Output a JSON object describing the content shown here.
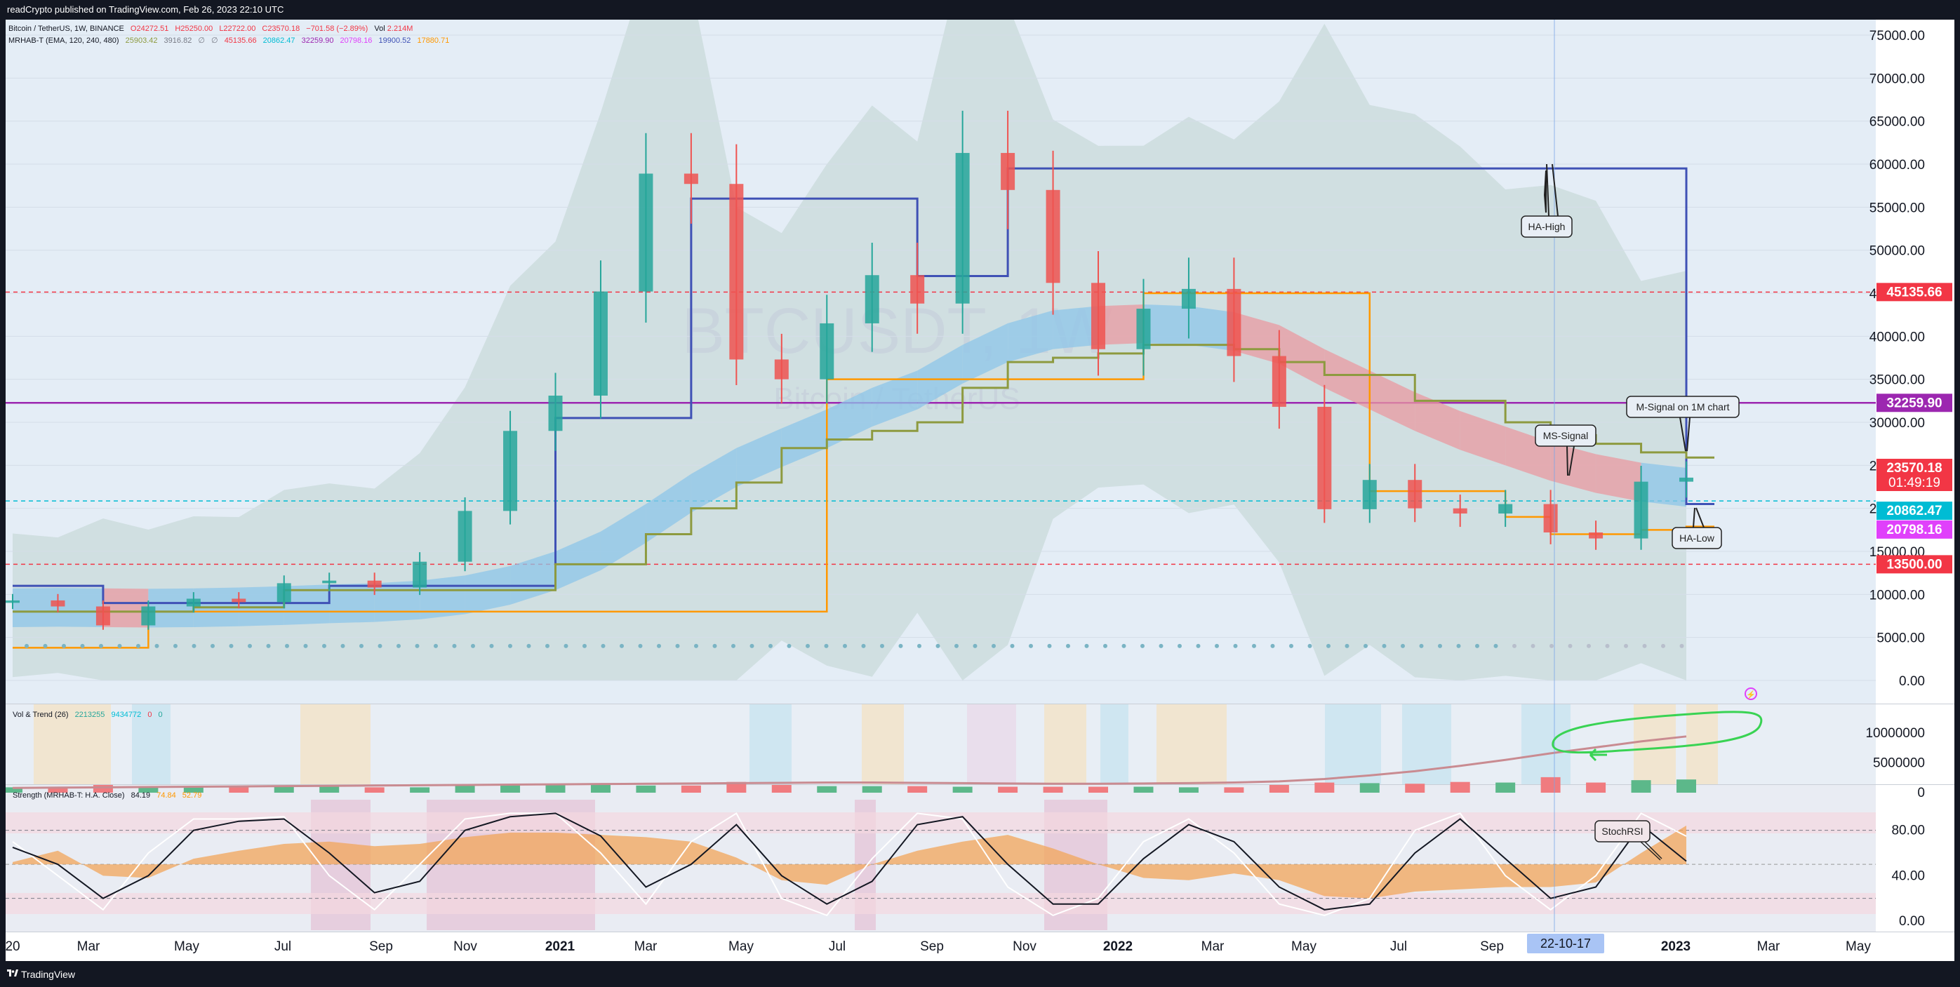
{
  "header": {
    "published": "readCrypto published on TradingView.com, Feb 26, 2023 22:10 UTC"
  },
  "footer": {
    "brand": "TradingView",
    "logo_icon": "tradingview-logo-icon"
  },
  "legend": {
    "symbol": {
      "name": "Bitcoin / TetherUS, 1W, BINANCE",
      "o": "O24272.51",
      "h": "H25250.00",
      "l": "L22722.00",
      "c": "C23570.18",
      "chg": "−701.58 (−2.89%)",
      "vol_label": "Vol",
      "vol": "2.214M"
    },
    "mrhab": {
      "name": "MRHAB-T (EMA, 120, 240, 480)",
      "v1": "25903.42",
      "v2": "3916.82",
      "v3": "∅",
      "v4": "∅",
      "v5": "45135.66",
      "v6": "20862.47",
      "v7": "32259.90",
      "v8": "20798.16",
      "v9": "19900.52",
      "v10": "17880.71"
    },
    "voltrend": {
      "name": "Vol & Trend (26)",
      "v1": "2213255",
      "v2": "9434772",
      "v3": "0",
      "v4": "0"
    },
    "strength": {
      "name": "Strength (MRHAB-T: H.A. Close)",
      "v1": "84.19",
      "v2": "74.84",
      "v3": "52.79"
    }
  },
  "watermark": {
    "symbol": "BTCUSDT, 1W",
    "description": "Bitcoin / TetherUS"
  },
  "annotations": {
    "ha_high": "HA-High",
    "m_signal": "M-Signal on 1M chart",
    "ms_signal": "MS-Signal",
    "ha_low": "HA-Low",
    "stochrsi": "StochRSI"
  },
  "price_badges": [
    {
      "label": "45135.66",
      "color": "#f23645"
    },
    {
      "label": "32259.90",
      "color": "#9c27b0"
    },
    {
      "label": "23570.18",
      "sub": "01:49:19",
      "color": "#f23645"
    },
    {
      "label": "20862.47",
      "color": "#00bcd4"
    },
    {
      "label": "20798.16",
      "color": "#e040fb"
    },
    {
      "label": "13500.00",
      "color": "#f23645"
    }
  ],
  "crosshair_date": "22-10-17",
  "colors": {
    "up": "#26a69a",
    "down": "#ef5350",
    "ha_line": "#3f51b5",
    "m_signal": "#9c27b0",
    "ms_signal": "#ff9800",
    "olive": "#8d9a3f",
    "highlight": "#4caf50"
  },
  "chart_data": [
    {
      "type": "candlestick",
      "title": "Bitcoin / TetherUS, 1W, BINANCE",
      "x_ticks": [
        "20",
        "Mar",
        "May",
        "Jul",
        "Sep",
        "Nov",
        "2021",
        "Mar",
        "May",
        "Jul",
        "Sep",
        "Nov",
        "2022",
        "Mar",
        "May",
        "Jul",
        "Sep",
        "Nov",
        "2023",
        "Mar",
        "May"
      ],
      "y_ticks": [
        "75000.00",
        "70000.00",
        "65000.00",
        "60000.00",
        "55000.00",
        "50000.00",
        "45000.00",
        "40000.00",
        "35000.00",
        "30000.00",
        "25000.00",
        "20000.00",
        "15000.00",
        "10000.00",
        "5000.00",
        "0.00"
      ],
      "ylim": [
        0,
        75000
      ],
      "x": [
        "2020-01",
        "2020-02",
        "2020-03",
        "2020-04",
        "2020-05",
        "2020-06",
        "2020-07",
        "2020-08",
        "2020-09",
        "2020-10",
        "2020-11",
        "2020-12",
        "2021-01",
        "2021-02",
        "2021-03",
        "2021-04",
        "2021-05",
        "2021-06",
        "2021-07",
        "2021-08",
        "2021-09",
        "2021-10",
        "2021-11",
        "2021-12",
        "2022-01",
        "2022-02",
        "2022-03",
        "2022-04",
        "2022-05",
        "2022-06",
        "2022-07",
        "2022-08",
        "2022-09",
        "2022-10",
        "2022-11",
        "2022-12",
        "2023-01",
        "2023-02"
      ],
      "series": [
        {
          "name": "BTCUSDT close",
          "values": [
            9300,
            8600,
            6400,
            8600,
            9500,
            9100,
            11300,
            11600,
            10800,
            13800,
            19700,
            29000,
            33100,
            45200,
            58900,
            57700,
            37300,
            35000,
            41500,
            47100,
            43800,
            61300,
            57000,
            46200,
            38500,
            43200,
            45500,
            37700,
            31800,
            19900,
            23300,
            20000,
            19400,
            20500,
            17200,
            16500,
            23100,
            23570
          ]
        },
        {
          "name": "EMA 120",
          "values": [
            8200,
            8250,
            8200,
            8150,
            8200,
            8300,
            8450,
            8650,
            8800,
            9100,
            9700,
            10800,
            12500,
            14800,
            18000,
            21500,
            24500,
            26800,
            29000,
            31500,
            33500,
            36500,
            39000,
            40500,
            41000,
            41200,
            41000,
            40300,
            38800,
            36000,
            33500,
            31000,
            28800,
            27000,
            25200,
            23800,
            22800,
            22200
          ]
        },
        {
          "name": "HA-High",
          "values": [
            11000,
            11000,
            9000,
            9000,
            9000,
            9000,
            9000,
            11000,
            11000,
            11000,
            11000,
            11000,
            30500,
            30500,
            30500,
            56000,
            56000,
            56000,
            56000,
            56000,
            47000,
            47000,
            59500,
            59500,
            59500,
            59500,
            59500,
            59500,
            59500,
            59500,
            59500,
            59500,
            59500,
            59500,
            59500,
            59500,
            59500,
            20500
          ]
        },
        {
          "name": "HA-Low",
          "values": [
            3800,
            3800,
            3800,
            8000,
            8000,
            8000,
            8000,
            8000,
            8000,
            8000,
            8000,
            8000,
            8000,
            8000,
            8000,
            8000,
            8000,
            8000,
            35000,
            35000,
            35000,
            35000,
            35000,
            35000,
            35000,
            45000,
            45000,
            45000,
            45000,
            45000,
            22000,
            22000,
            22000,
            19000,
            17000,
            17000,
            17500,
            17880
          ]
        },
        {
          "name": "MS-Signal",
          "values": [
            8000,
            8000,
            8000,
            8000,
            8500,
            8500,
            10500,
            10500,
            10500,
            10500,
            10500,
            10500,
            13500,
            13500,
            17000,
            20000,
            23000,
            27000,
            28000,
            29000,
            30000,
            34000,
            37000,
            37500,
            38000,
            39000,
            39000,
            38500,
            37000,
            35500,
            35500,
            32500,
            32500,
            30000,
            28500,
            27500,
            26500,
            25900
          ]
        }
      ],
      "levels": [
        {
          "name": "45135.66",
          "value": 45135.66,
          "style": "dashed",
          "color": "#f23645"
        },
        {
          "name": "32259.90",
          "value": 32259.9,
          "style": "solid",
          "color": "#9c27b0"
        },
        {
          "name": "20862.47",
          "value": 20862.47,
          "style": "dashed",
          "color": "#00bcd4"
        },
        {
          "name": "13500.00",
          "value": 13500.0,
          "style": "dashed",
          "color": "#f23645"
        }
      ]
    },
    {
      "type": "bar",
      "title": "Vol & Trend (26)",
      "y_ticks": [
        "10000000",
        "5000000",
        "0"
      ],
      "ylim": [
        0,
        12000000
      ],
      "series": [
        {
          "name": "volume",
          "values": [
            900000,
            950000,
            1300000,
            1100000,
            1000000,
            900000,
            950000,
            1000000,
            900000,
            900000,
            1200000,
            1300000,
            1500000,
            1500000,
            1200000,
            1200000,
            1800000,
            1300000,
            1100000,
            1100000,
            1100000,
            1000000,
            1000000,
            1000000,
            1000000,
            1000000,
            900000,
            900000,
            1300000,
            1700000,
            1600000,
            1500000,
            1800000,
            1700000,
            2600000,
            1700000,
            2100000,
            2213255
          ]
        },
        {
          "name": "trend",
          "values": [
            800000,
            850000,
            900000,
            950000,
            1000000,
            1050000,
            1100000,
            1150000,
            1200000,
            1250000,
            1300000,
            1350000,
            1400000,
            1450000,
            1500000,
            1550000,
            1600000,
            1650000,
            1700000,
            1700000,
            1650000,
            1600000,
            1550000,
            1500000,
            1500000,
            1550000,
            1600000,
            1700000,
            1900000,
            2300000,
            2900000,
            3600000,
            4500000,
            5500000,
            6600000,
            7600000,
            8600000,
            9434772
          ]
        }
      ]
    },
    {
      "type": "line",
      "title": "Strength (MRHAB-T: H.A. Close)",
      "y_ticks": [
        "80.00",
        "40.00",
        "0.00"
      ],
      "ylim": [
        0,
        100
      ],
      "series": [
        {
          "name": "strength",
          "values": [
            52,
            62,
            40,
            38,
            55,
            62,
            68,
            70,
            66,
            68,
            74,
            78,
            78,
            76,
            74,
            70,
            56,
            36,
            32,
            50,
            62,
            70,
            76,
            64,
            50,
            38,
            36,
            42,
            36,
            22,
            20,
            26,
            28,
            30,
            30,
            34,
            60,
            84.19
          ]
        },
        {
          "name": "StochRSI K",
          "values": [
            70,
            40,
            10,
            60,
            90,
            90,
            92,
            40,
            10,
            50,
            90,
            95,
            95,
            60,
            15,
            70,
            95,
            20,
            5,
            55,
            95,
            90,
            30,
            5,
            20,
            70,
            90,
            60,
            15,
            5,
            20,
            80,
            95,
            40,
            10,
            40,
            95,
            74.84
          ]
        },
        {
          "name": "StochRSI D",
          "values": [
            65,
            50,
            20,
            40,
            80,
            88,
            90,
            60,
            25,
            35,
            80,
            92,
            95,
            75,
            30,
            50,
            85,
            40,
            15,
            35,
            85,
            92,
            50,
            15,
            15,
            55,
            85,
            70,
            30,
            10,
            15,
            60,
            90,
            55,
            20,
            30,
            85,
            52.79
          ]
        }
      ]
    }
  ]
}
